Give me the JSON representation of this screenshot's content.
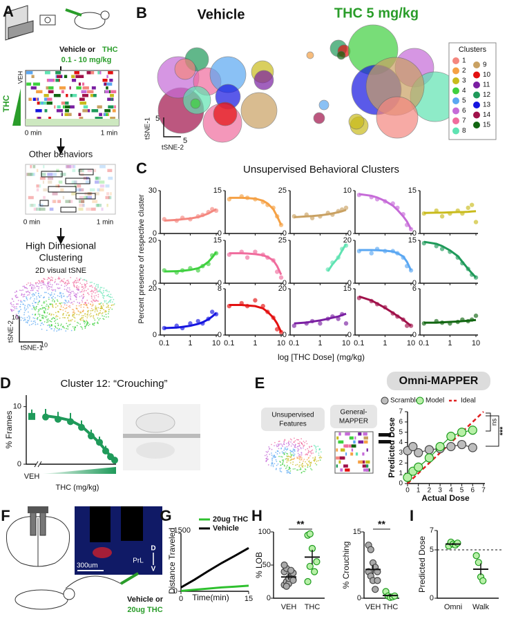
{
  "panel_labels": [
    "A",
    "B",
    "C",
    "D",
    "E",
    "F",
    "G",
    "H",
    "I"
  ],
  "a": {
    "subject": "Vehicle or",
    "drug": "THC",
    "dose_range": "0.1 - 10 mg/kg",
    "raster_veh": "VEH",
    "raster_thc": "THC",
    "raster_start": "0 min",
    "raster_end": "1 min",
    "other_title": "Other behaviors",
    "other_start": "0 min",
    "other_end": "1 min",
    "clustering": [
      "High Dimesional",
      "Clustering"
    ],
    "tsne_title": "2D visual tSNE",
    "tsne_ticks": [
      10,
      10
    ],
    "tsne_axes": [
      "tSNE-2",
      "tSNE-1"
    ]
  },
  "b": {
    "vehicle_title": "Vehicle",
    "thc_title": "THC 5 mg/kg",
    "legend_title": "Clusters",
    "clusters": [
      {
        "name": 1,
        "color": "#f4877f"
      },
      {
        "name": 2,
        "color": "#f5a145"
      },
      {
        "name": 3,
        "color": "#c9bb1c"
      },
      {
        "name": 4,
        "color": "#3fd03f"
      },
      {
        "name": 5,
        "color": "#5aa7f2"
      },
      {
        "name": 6,
        "color": "#c66bd8"
      },
      {
        "name": 7,
        "color": "#f06c9d"
      },
      {
        "name": 8,
        "color": "#5fe3b2"
      },
      {
        "name": 9,
        "color": "#c9a162"
      },
      {
        "name": 10,
        "color": "#e31010"
      },
      {
        "name": 11,
        "color": "#7a1fa2"
      },
      {
        "name": 12,
        "color": "#1f9a5a"
      },
      {
        "name": 13,
        "color": "#1515e0"
      },
      {
        "name": 14,
        "color": "#a0114a"
      },
      {
        "name": 15,
        "color": "#116611"
      }
    ],
    "scale_ticks": [
      5,
      5
    ],
    "axes": [
      "tSNE-1",
      "tSNE-2"
    ]
  },
  "c": {
    "title": "Unsupervised Behavioral Clusters",
    "ylabel": "Percent presence of respective cluster",
    "xlabel": "log [THC Dose] (mg/kg)",
    "log_x": true,
    "xlim": [
      0.07,
      12
    ],
    "xticks": [
      0.1,
      1,
      10
    ],
    "x": [
      0.1,
      0.3,
      0.5,
      1,
      2,
      3,
      5,
      7,
      10
    ],
    "plots": [
      {
        "color": "#f4877f",
        "ylim": [
          0,
          30
        ],
        "yticks": [
          0,
          30
        ],
        "values": [
          10,
          9,
          11,
          10,
          12,
          13,
          15,
          17,
          16
        ],
        "fit": [
          9,
          9.5,
          10,
          10.5,
          11.5,
          12.5,
          14,
          15.5,
          17
        ]
      },
      {
        "color": "#f5a145",
        "ylim": [
          0,
          15
        ],
        "yticks": [
          0,
          15
        ],
        "values": [
          12,
          13,
          12.5,
          12,
          11,
          10,
          9,
          6,
          3
        ],
        "fit": [
          12.5,
          12.5,
          12.4,
          12.2,
          11.5,
          10.5,
          8.5,
          6,
          3
        ]
      },
      {
        "color": "#c9a162",
        "ylim": [
          0,
          25
        ],
        "yticks": [
          0,
          25
        ],
        "values": [
          10,
          11,
          9,
          10,
          12,
          11,
          13,
          14,
          15
        ],
        "fit": [
          9.5,
          10,
          10.2,
          10.6,
          11.2,
          11.7,
          12.4,
          13,
          13.8
        ]
      },
      {
        "color": "#c66bd8",
        "ylim": [
          0,
          10
        ],
        "yticks": [
          0,
          10
        ],
        "values": [
          9,
          8.5,
          8,
          7.5,
          7,
          6,
          4.5,
          2,
          1
        ],
        "fit": [
          9.2,
          8.8,
          8.4,
          7.6,
          6.5,
          5.5,
          4,
          2.8,
          1
        ]
      },
      {
        "color": "#c9bb1c",
        "ylim": [
          0,
          15
        ],
        "yticks": [
          0,
          15
        ],
        "values": [
          7,
          8,
          6,
          7,
          8,
          7,
          9,
          10,
          4
        ],
        "fit": [
          7.2,
          7.3,
          7.3,
          7.4,
          7.5,
          7.5,
          7.6,
          7.7,
          7.8
        ]
      },
      {
        "color": "#3fd03f",
        "ylim": [
          0,
          20
        ],
        "yticks": [
          0,
          20
        ],
        "values": [
          6,
          5,
          6,
          7,
          6,
          8,
          9,
          13,
          14
        ],
        "fit": [
          5.5,
          5.6,
          5.8,
          6.2,
          7,
          8,
          10,
          12,
          14.5
        ]
      },
      {
        "color": "#f06c9d",
        "ylim": [
          0,
          15
        ],
        "yticks": [
          0,
          15
        ],
        "values": [
          10,
          11,
          9,
          11,
          10,
          9,
          8,
          4,
          2
        ],
        "fit": [
          10.5,
          10.5,
          10.4,
          10.2,
          9.8,
          9.2,
          8,
          6,
          3
        ]
      },
      {
        "color": "#5fe3b2",
        "ylim": [
          0,
          25
        ],
        "yticks": [
          0,
          25
        ],
        "values": [
          null,
          null,
          null,
          null,
          8,
          12,
          15,
          20,
          22
        ],
        "fit": [
          null,
          null,
          null,
          null,
          7,
          11,
          15,
          19,
          23
        ]
      },
      {
        "color": "#5aa7f2",
        "ylim": [
          0,
          20
        ],
        "yticks": [
          0,
          20
        ],
        "values": [
          15,
          14,
          16,
          15,
          15,
          14,
          12,
          8,
          6
        ],
        "fit": [
          15.5,
          15.5,
          15.4,
          15.2,
          14.8,
          14,
          12.5,
          10,
          6
        ]
      },
      {
        "color": "#1f9a5a",
        "ylim": [
          0,
          15
        ],
        "yticks": [
          0,
          15
        ],
        "values": [
          14,
          13,
          12,
          11,
          9,
          7,
          5,
          3,
          2
        ],
        "fit": [
          14.5,
          13.8,
          13,
          11.5,
          9.5,
          7.5,
          5,
          3.5,
          2
        ]
      },
      {
        "color": "#1515e0",
        "ylim": [
          0,
          20
        ],
        "yticks": [
          0,
          20
        ],
        "values": [
          3,
          4,
          3,
          5,
          6,
          5,
          7,
          10,
          9
        ],
        "fit": [
          3,
          3.2,
          3.5,
          4,
          4.8,
          5.5,
          6.8,
          8,
          9.5
        ]
      },
      {
        "color": "#e31010",
        "ylim": [
          0,
          8
        ],
        "yticks": [
          0,
          8
        ],
        "values": [
          5,
          5.5,
          5,
          6,
          5,
          4,
          3,
          1,
          0.5
        ],
        "fit": [
          5.2,
          5.2,
          5.1,
          5,
          4.6,
          4,
          3,
          2,
          0.5
        ]
      },
      {
        "color": "#7a1fa2",
        "ylim": [
          0,
          20
        ],
        "yticks": [
          0,
          20
        ],
        "values": [
          4,
          5,
          6,
          5,
          7,
          8,
          7,
          9,
          5
        ],
        "fit": [
          5,
          5.4,
          5.8,
          6.3,
          7,
          7.5,
          8,
          8.6,
          9.2
        ]
      },
      {
        "color": "#a0114a",
        "ylim": [
          0,
          15
        ],
        "yticks": [
          0,
          15
        ],
        "values": [
          12,
          11,
          10,
          9,
          7,
          6,
          5,
          3,
          3
        ],
        "fit": [
          12.5,
          11.2,
          10.2,
          8.8,
          7.2,
          6.2,
          5,
          4,
          3
        ]
      },
      {
        "color": "#116611",
        "ylim": [
          0,
          6
        ],
        "yticks": [
          0,
          6
        ],
        "values": [
          1.5,
          1.8,
          1.6,
          1.5,
          1.7,
          2,
          1.8,
          2,
          2.5
        ],
        "fit": [
          1.6,
          1.6,
          1.65,
          1.7,
          1.75,
          1.8,
          1.85,
          1.9,
          1.95
        ]
      }
    ]
  },
  "d": {
    "title": "Cluster 12: “Crouching”",
    "ylabel": "% Frames",
    "ylim": [
      0,
      12
    ],
    "yticks": [
      0,
      10
    ],
    "color": "#1f9a5a",
    "vehicle": {
      "label": "VEH",
      "value": 8.3,
      "sem": 1.2
    },
    "xlabel": "THC (mg/kg)",
    "values": [
      8.2,
      7.8,
      7.4,
      6.4,
      4.9,
      3.8,
      2.3,
      1.3,
      0.7
    ],
    "sem": [
      1.4,
      1.3,
      1.5,
      1.2,
      1.1,
      1,
      0.9,
      0.5,
      0.4
    ],
    "fit": [
      8.4,
      8.1,
      7.6,
      6.6,
      5.1,
      3.7,
      2.4,
      1.4,
      0.9
    ]
  },
  "e": {
    "title": "Omni-MAPPER",
    "features": [
      "Unsupervised",
      "Features"
    ],
    "general": [
      "General-",
      "MAPPER"
    ],
    "xlabel": "Actual Dose",
    "ylabel": "Predicted Dose",
    "xlim": [
      0,
      7
    ],
    "ylim": [
      0,
      7
    ],
    "xticks": [
      0,
      1,
      2,
      3,
      4,
      5,
      6,
      7
    ],
    "yticks": [
      0,
      1,
      2,
      3,
      4,
      5,
      6,
      7
    ],
    "x": [
      0,
      0.5,
      1,
      2,
      3,
      4,
      5,
      6
    ],
    "series": [
      {
        "name": "Scramble",
        "color": "#bdbdbd",
        "values": [
          3.2,
          3.6,
          3,
          3.3,
          3.4,
          3.6,
          3.8,
          3.5
        ]
      },
      {
        "name": "Model",
        "color": "#b8f0a8",
        "values": [
          0.6,
          1.2,
          1.6,
          2.5,
          3.6,
          4.6,
          5,
          5.2
        ]
      }
    ],
    "ideal": {
      "name": "Ideal",
      "color": "#e02020",
      "x": [
        0,
        7
      ],
      "values": [
        0,
        7
      ]
    },
    "significance": [
      "ns",
      "***"
    ]
  },
  "f": {
    "region": "PrL",
    "dorsal": "D",
    "ventral": "V",
    "scale": "300um",
    "treatment": "Vehicle or",
    "drug": "20ug THC"
  },
  "g": {
    "ylabel": "Distance Traveled",
    "xlabel": "Time(min)",
    "xlim": [
      0,
      15
    ],
    "ylim": [
      0,
      1500
    ],
    "xticks": [
      0,
      15
    ],
    "yticks": [
      0,
      1500
    ],
    "x": [
      0,
      3,
      6,
      9,
      12,
      15
    ],
    "series": [
      {
        "name": "20ug THC",
        "color": "#2ec02e",
        "values": [
          10,
          40,
          70,
          100,
          120,
          145
        ]
      },
      {
        "name": "Vehicle",
        "color": "#000000",
        "values": [
          100,
          300,
          520,
          730,
          920,
          1120
        ]
      }
    ]
  },
  "h": {
    "plots": [
      {
        "ylabel": "% LOB",
        "ylim": [
          0,
          100
        ],
        "yticks": [
          0,
          50,
          100
        ],
        "significance": "**",
        "groups": [
          {
            "name": "VEH",
            "color": "#aaaaaa",
            "values": [
              20,
              25,
              30,
              35,
              28,
              40,
              45,
              22,
              33,
              38,
              50,
              18,
              30,
              42,
              27
            ],
            "mean": 32,
            "sem": 4
          },
          {
            "name": "THC",
            "color": "#b8f0a8",
            "values": [
              95,
              97,
              75,
              40,
              55,
              25,
              48
            ],
            "mean": 62,
            "sem": 11
          }
        ]
      },
      {
        "ylabel": "% Crouching",
        "ylim": [
          0,
          15
        ],
        "yticks": [
          0,
          15
        ],
        "significance": "**",
        "groups": [
          {
            "name": "VEH",
            "color": "#aaaaaa",
            "values": [
              12,
              11,
              8,
              7,
              6,
              6,
              5,
              4,
              2,
              4
            ],
            "mean": 6.5,
            "sem": 1
          },
          {
            "name": "THC",
            "color": "#b8f0a8",
            "values": [
              1.5,
              0.5,
              0.2,
              0.3,
              0.5
            ],
            "mean": 0.6,
            "sem": 0.3
          }
        ]
      }
    ]
  },
  "i": {
    "ylabel": "Predicted Dose",
    "ylim": [
      0,
      7
    ],
    "yticks": [
      0,
      5,
      7
    ],
    "reference": 5,
    "groups": [
      {
        "name": "Omni",
        "color": "#b8f0a8",
        "values": [
          5.4,
          5.8,
          5.6,
          5.5,
          5.7
        ],
        "mean": 5.6,
        "sem": 0.1
      },
      {
        "name": "Walk",
        "color": "#b8f0a8",
        "values": [
          4.4,
          3.7,
          2.2,
          1.8
        ],
        "mean": 3,
        "sem": 0.6
      }
    ]
  }
}
